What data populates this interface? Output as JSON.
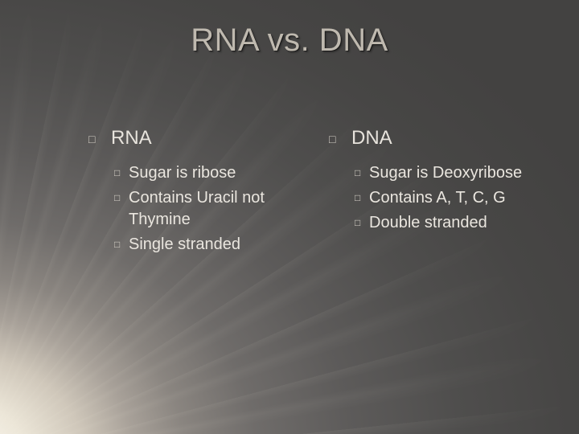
{
  "title": "RNA vs.  DNA",
  "columns": [
    {
      "heading": "RNA",
      "items": [
        "Sugar is ribose",
        "Contains Uracil not Thymine",
        "Single stranded"
      ]
    },
    {
      "heading": "DNA",
      "items": [
        "Sugar is Deoxyribose",
        "Contains A, T, C, G",
        "Double stranded"
      ]
    }
  ],
  "style": {
    "title_fontsize": 40,
    "title_color": "#bfb9af",
    "heading_fontsize": 24,
    "heading_color": "#e7e3dc",
    "item_fontsize": 20,
    "item_color": "#eae6df",
    "bullet_glyph": "□",
    "light_origin": "bottom-left",
    "background_gradient": [
      "#fdfbf5",
      "#ece6d8",
      "#8a8580",
      "#5d5b5a",
      "#434241"
    ]
  }
}
